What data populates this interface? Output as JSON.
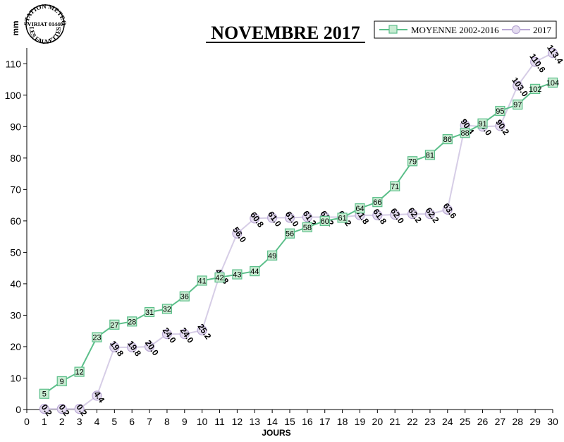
{
  "chart_data": {
    "type": "line",
    "title": "NOVEMBRE 2017",
    "xlabel": "JOURS",
    "ylabel": "mm",
    "xlim": [
      0,
      30
    ],
    "ylim": [
      0,
      115
    ],
    "x_ticks": [
      0,
      1,
      2,
      3,
      4,
      5,
      6,
      7,
      8,
      9,
      10,
      11,
      12,
      13,
      14,
      15,
      16,
      17,
      18,
      19,
      20,
      21,
      22,
      23,
      24,
      25,
      26,
      27,
      28,
      29,
      30
    ],
    "y_ticks": [
      0,
      10,
      20,
      30,
      40,
      50,
      60,
      70,
      80,
      90,
      100,
      110
    ],
    "grid": false,
    "legend_position": "top-right",
    "series": [
      {
        "name": "MOYENNE 2002-2016",
        "color": "#5cbf8a",
        "marker": "square",
        "x": [
          1,
          2,
          3,
          4,
          5,
          6,
          7,
          8,
          9,
          10,
          11,
          12,
          13,
          14,
          15,
          16,
          17,
          18,
          19,
          20,
          21,
          22,
          23,
          24,
          25,
          26,
          27,
          28,
          29,
          30
        ],
        "values": [
          5,
          9,
          12,
          23,
          27,
          28,
          31,
          32,
          36,
          41,
          42,
          43,
          44,
          49,
          56,
          58,
          60,
          61,
          64,
          66,
          71,
          79,
          81,
          86,
          88,
          91,
          95,
          97,
          102,
          104
        ],
        "labels": [
          "5",
          "9",
          "12",
          "23",
          "27",
          "28",
          "31",
          "32",
          "36",
          "41",
          "42",
          "43",
          "44",
          "49",
          "56",
          "58",
          "60",
          "61",
          "64",
          "66",
          "71",
          "79",
          "81",
          "86",
          "88",
          "91",
          "95",
          "97",
          "102",
          "104"
        ]
      },
      {
        "name": "2017",
        "color": "#b9a8d4",
        "marker": "circle",
        "x": [
          1,
          2,
          3,
          4,
          5,
          6,
          7,
          8,
          9,
          10,
          11,
          12,
          13,
          14,
          15,
          16,
          17,
          18,
          19,
          20,
          21,
          22,
          23,
          24,
          25,
          26,
          27,
          28,
          29,
          30
        ],
        "values": [
          0.2,
          0.2,
          0.2,
          4.4,
          19.8,
          19.8,
          20.0,
          24.0,
          24.0,
          25.2,
          42.8,
          56.0,
          60.8,
          61.0,
          61.0,
          61.2,
          61.2,
          61.2,
          61.8,
          61.8,
          62.0,
          62.2,
          62.2,
          63.6,
          90.4,
          90.0,
          90.2,
          103.0,
          110.6,
          113.4
        ],
        "labels": [
          "0.2",
          "0.2",
          "0.2",
          "4.4",
          "19.8",
          "19.8",
          "20.0",
          "24.0",
          "24.0",
          "25.2",
          "42.8",
          "56.0",
          "60.8",
          "61.0",
          "61.0",
          "61.2",
          "61.2",
          "61.2",
          "61.8",
          "61.8",
          "62.0",
          "62.2",
          "62.2",
          "63.6",
          "90.4",
          "90.0",
          "90.2",
          "103.0",
          "110.6",
          "113.4"
        ]
      }
    ]
  },
  "stamp": {
    "line1": "STATION METEO",
    "line2": "VIRIAT 01440",
    "line3": "LES FAUVETTES"
  }
}
